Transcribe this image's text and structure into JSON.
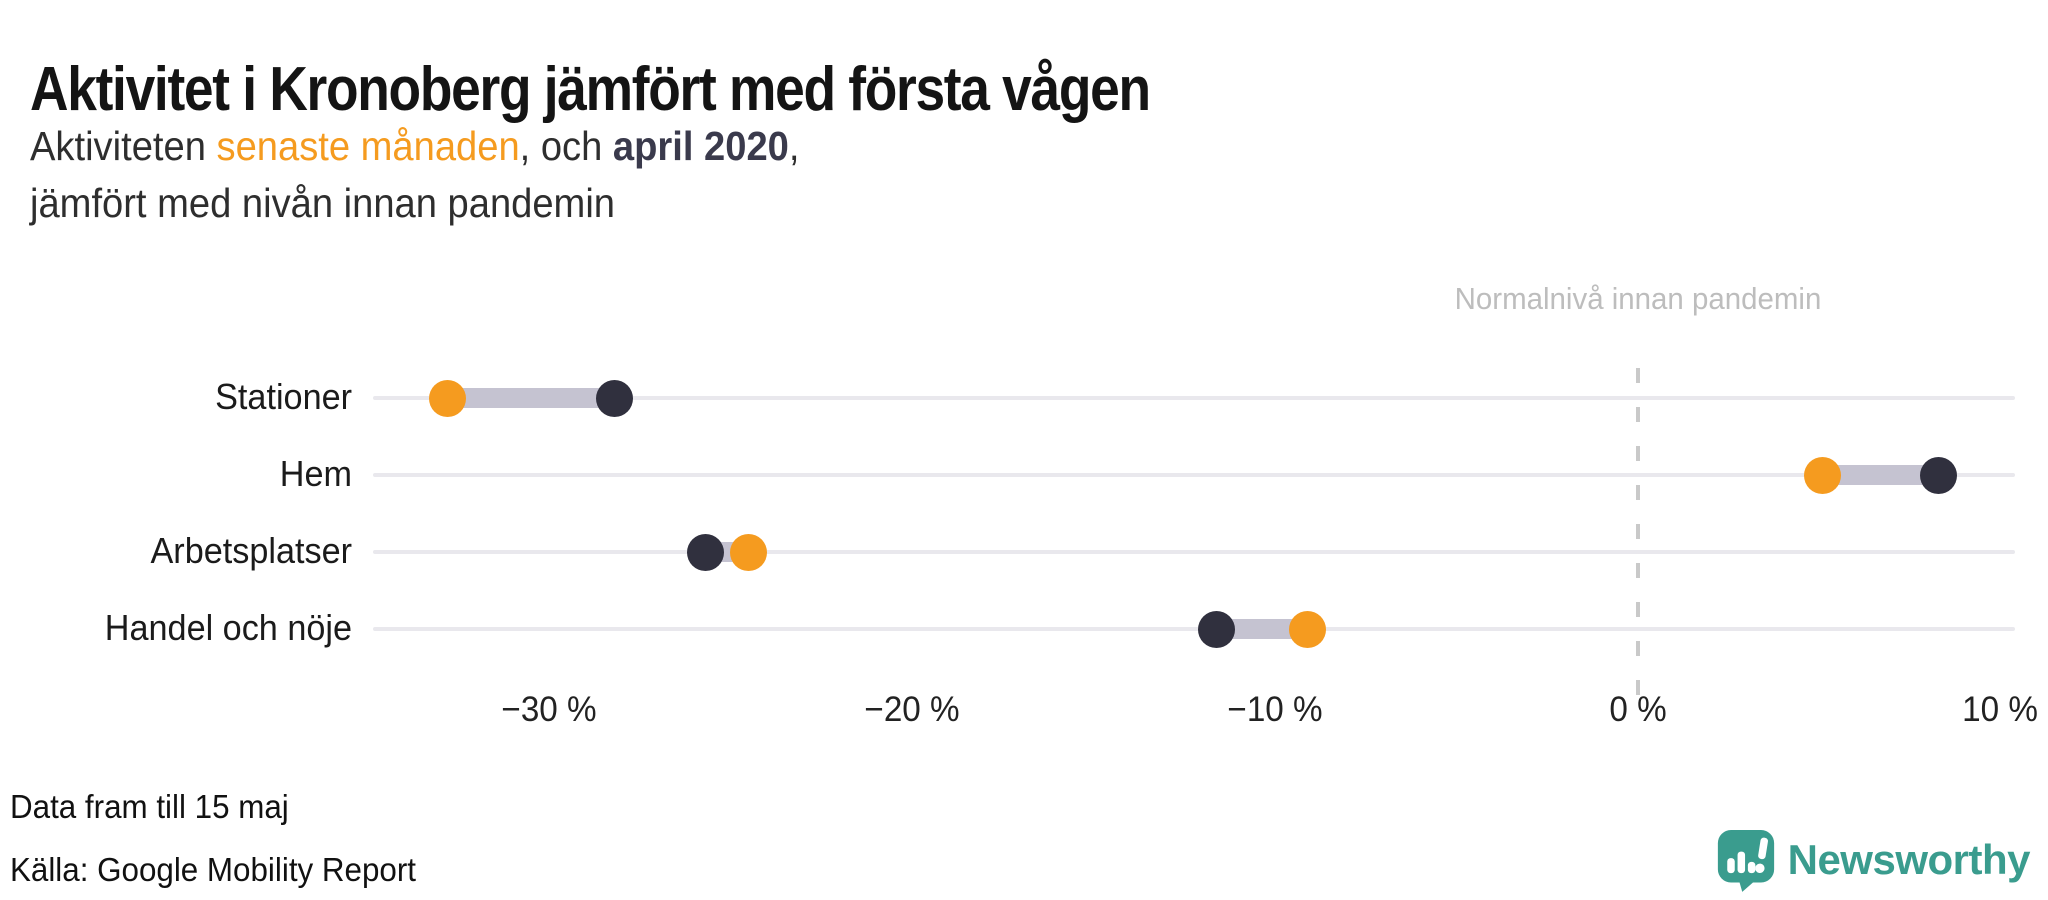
{
  "title": "Aktivitet i Kronoberg jämfört med första vågen",
  "subtitle": {
    "prefix": "Aktiviteten ",
    "highlight_orange": "senaste månaden",
    "mid": ", och ",
    "highlight_dark": "april 2020",
    "suffix": ",",
    "line2": "jämfört med nivån innan pandemin"
  },
  "annotation": "Normalnivå innan pandemin",
  "footer": {
    "note": "Data fram till 15 maj",
    "source": "Källa: Google Mobility Report"
  },
  "brand": {
    "name": "Newsworthy"
  },
  "colors": {
    "series_last_month": "#f59b1f",
    "series_april_2020": "#30303e",
    "connector": "#c5c3d1",
    "gridline": "#e9e8ed",
    "zero_line": "#c9c9c9",
    "annotation_text": "#bdbdbd",
    "brand_teal": "#3a9c8e"
  },
  "chart_data": {
    "type": "dumbbell",
    "title": "Aktivitet i Kronoberg jämfört med första vågen",
    "categories": [
      "Stationer",
      "Hem",
      "Arbetsplatser",
      "Handel och nöje"
    ],
    "series": [
      {
        "name": "senaste månaden",
        "color": "#f59b1f",
        "values": [
          -32.8,
          5.1,
          -24.5,
          -9.1
        ]
      },
      {
        "name": "april 2020",
        "color": "#30303e",
        "values": [
          -28.2,
          8.3,
          -25.7,
          -11.6
        ]
      }
    ],
    "unit": "%",
    "xlim": [
      -34.85,
      10.4
    ],
    "x_ticks": [
      {
        "value": -30,
        "label": "−30 %"
      },
      {
        "value": -20,
        "label": "−20 %"
      },
      {
        "value": -10,
        "label": "−10 %"
      },
      {
        "value": 0,
        "label": "0 %"
      },
      {
        "value": 10,
        "label": "10 %"
      }
    ],
    "reference_line": {
      "value": 0,
      "label": "Normalnivå innan pandemin"
    },
    "grid": "horizontal-row-lines",
    "legend_position": "in-subtitle"
  }
}
